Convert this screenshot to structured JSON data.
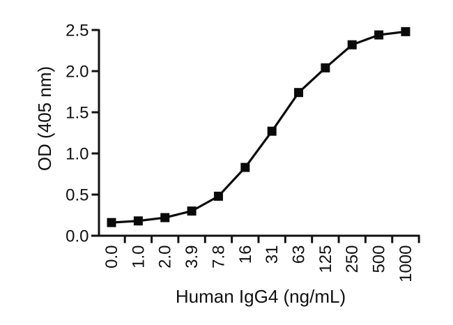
{
  "chart_data": {
    "type": "line",
    "title": "",
    "xlabel": "Human IgG4 (ng/mL)",
    "ylabel": "OD (405 nm)",
    "categories": [
      "0.0",
      "1.0",
      "2.0",
      "3.9",
      "7.8",
      "16",
      "31",
      "63",
      "125",
      "250",
      "500",
      "1000"
    ],
    "values": [
      0.16,
      0.18,
      0.22,
      0.3,
      0.48,
      0.83,
      1.27,
      1.74,
      2.04,
      2.32,
      2.44,
      2.48
    ],
    "yticks": [
      "0.0",
      "0.5",
      "1.0",
      "1.5",
      "2.0",
      "2.5"
    ],
    "ytick_step": 0.5,
    "ylim": [
      0,
      2.5
    ],
    "xtick_rotation": -90,
    "marker": "square",
    "grid": false,
    "legend": "none",
    "line_color": "#0a0a0a",
    "marker_color": "#0a0a0a",
    "axis_color": "#111111",
    "text_color": "#101010",
    "background": "#ffffff"
  }
}
